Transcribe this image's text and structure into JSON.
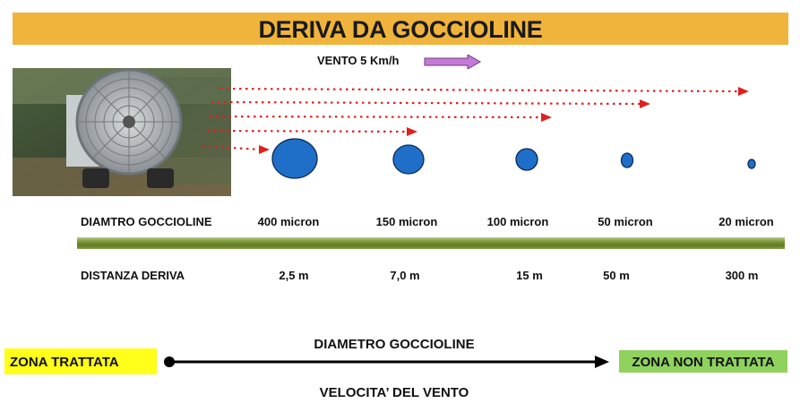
{
  "title": "DERIVA DA GOCCIOLINE",
  "wind": {
    "label": "VENTO  5 Km/h"
  },
  "rows": {
    "diameter_label": "DIAMTRO GOCCIOLINE",
    "distance_label": "DISTANZA  DERIVA"
  },
  "droplets": [
    {
      "diameter": "400 micron",
      "distance": "2,5 m"
    },
    {
      "diameter": "150 micron",
      "distance": "7,0 m"
    },
    {
      "diameter": "100 micron",
      "distance": "15 m"
    },
    {
      "diameter": "50 micron",
      "distance": "50 m"
    },
    {
      "diameter": "20 micron",
      "distance": "300 m"
    }
  ],
  "zones": {
    "treated": "ZONA TRATTATA",
    "untreated": "ZONA NON TRATTATA"
  },
  "axis": {
    "top_label": "DIAMETRO GOCCIOLINE",
    "bottom_label": "VELOCITA’ DEL VENTO"
  },
  "colors": {
    "title_bar": "#f0b43c",
    "droplet_fill": "#1f6fc8",
    "drift_arrow": "#e02020",
    "wind_arrow": "#c57ad8",
    "treated_zone": "#ffff1a",
    "untreated_zone": "#8fd25e"
  },
  "icons": [
    "sprayer-fan-photo",
    "wind-arrow-icon"
  ]
}
